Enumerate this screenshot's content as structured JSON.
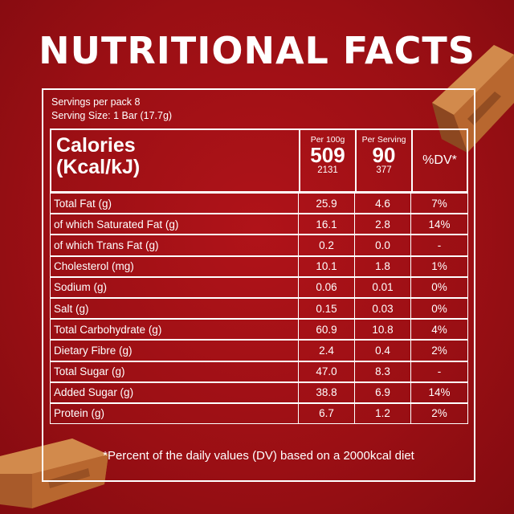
{
  "title": "NUTRITIONAL FACTS",
  "servings_per_pack": "Servings per pack 8",
  "serving_size": "Serving Size: 1 Bar (17.7g)",
  "header": {
    "calories_label_line1": "Calories",
    "calories_label_line2": "(Kcal/kJ)",
    "per100_label": "Per 100g",
    "per100_kcal": "509",
    "per100_kj": "2131",
    "perserving_label": "Per Serving",
    "perserving_kcal": "90",
    "perserving_kj": "377",
    "dv_label": "%DV*"
  },
  "rows": [
    {
      "name": "Total Fat (g)",
      "per100": "25.9",
      "serving": "4.6",
      "dv": "7%"
    },
    {
      "name": " of which Saturated Fat (g)",
      "per100": "16.1",
      "serving": "2.8",
      "dv": "14%"
    },
    {
      "name": " of which Trans Fat (g)",
      "per100": "0.2",
      "serving": "0.0",
      "dv": "-"
    },
    {
      "name": "Cholesterol (mg)",
      "per100": "10.1",
      "serving": "1.8",
      "dv": "1%"
    },
    {
      "name": "Sodium (g)",
      "per100": "0.06",
      "serving": "0.01",
      "dv": "0%"
    },
    {
      "name": "Salt (g)",
      "per100": "0.15",
      "serving": "0.03",
      "dv": "0%"
    },
    {
      "name": "Total Carbohydrate (g)",
      "per100": "60.9",
      "serving": "10.8",
      "dv": "4%"
    },
    {
      "name": "Dietary Fibre (g)",
      "per100": "2.4",
      "serving": "0.4",
      "dv": "2%"
    },
    {
      "name": "Total Sugar (g)",
      "per100": "47.0",
      "serving": "8.3",
      "dv": "-"
    },
    {
      "name": "Added Sugar (g)",
      "per100": "38.8",
      "serving": "6.9",
      "dv": "14%"
    },
    {
      "name": "Protein (g)",
      "per100": "6.7",
      "serving": "1.2",
      "dv": "2%"
    }
  ],
  "footnote": "*Percent of the daily values (DV) based on a 2000kcal diet",
  "colors": {
    "background": "#9a0f14",
    "text": "#ffffff",
    "chocolate": "#b86a35"
  }
}
